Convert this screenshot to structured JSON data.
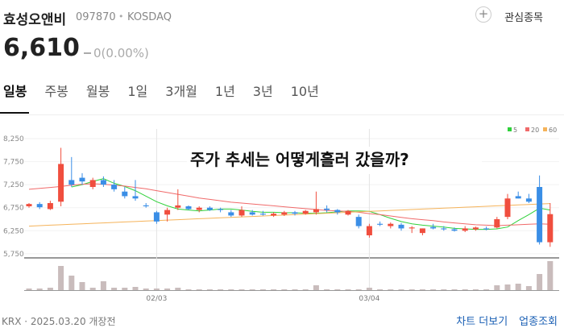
{
  "header": {
    "name": "효성오앤비",
    "code": "097870",
    "market": "KOSDAQ",
    "watch_button": "관심종목"
  },
  "price": {
    "current": "6,610",
    "change": "0(0.00%)"
  },
  "tabs": [
    "일봉",
    "주봉",
    "월봉",
    "1일",
    "3개월",
    "1년",
    "3년",
    "10년"
  ],
  "annotation": "주가 추세는 어떻게흘러 갔을까?",
  "footer": {
    "info": "KRX · 2025.03.20 개장전",
    "links": [
      "차트 더보기",
      "업종조회"
    ]
  },
  "chart_data": {
    "type": "candlestick",
    "categories": [
      null,
      null,
      null,
      null,
      null,
      null,
      null,
      null,
      null,
      null,
      null,
      null,
      "02/03",
      null,
      null,
      null,
      null,
      null,
      null,
      null,
      null,
      null,
      null,
      null,
      null,
      null,
      null,
      null,
      null,
      null,
      null,
      null,
      "03/04",
      null,
      null,
      null,
      null,
      null,
      null,
      null,
      null,
      null,
      null,
      null,
      null,
      null,
      null,
      null,
      null,
      null
    ],
    "open": [
      6780,
      6830,
      6720,
      6880,
      7350,
      7400,
      7200,
      7350,
      7250,
      7100,
      7000,
      6800,
      6650,
      6600,
      6750,
      6780,
      6700,
      6750,
      6720,
      6650,
      6580,
      6650,
      6620,
      6580,
      6600,
      6650,
      6620,
      6650,
      6730,
      6700,
      6600,
      6550,
      6150,
      6400,
      6350,
      6380,
      6300,
      6200,
      6330,
      6300,
      6280,
      6250,
      6280,
      6300,
      6320,
      6550,
      7000,
      6950,
      7200,
      6000
    ],
    "high": [
      6850,
      6870,
      6900,
      8050,
      7850,
      7500,
      7400,
      7430,
      7350,
      7200,
      7350,
      6850,
      6680,
      6750,
      7150,
      6800,
      6780,
      6780,
      6750,
      6700,
      6780,
      6700,
      6680,
      6650,
      6680,
      6680,
      6700,
      7100,
      6800,
      6720,
      6700,
      6600,
      6400,
      6450,
      6430,
      6420,
      6350,
      6300,
      6400,
      6350,
      6320,
      6350,
      6340,
      6340,
      6550,
      7050,
      7100,
      7050,
      7450,
      6850
    ],
    "low": [
      6750,
      6720,
      6700,
      6780,
      7200,
      7250,
      7150,
      7200,
      7100,
      6950,
      6900,
      6750,
      6400,
      6450,
      6700,
      6700,
      6650,
      6680,
      6650,
      6550,
      6550,
      6580,
      6580,
      6550,
      6570,
      6580,
      6600,
      6600,
      6650,
      6600,
      6580,
      6300,
      6100,
      6350,
      6300,
      6250,
      6200,
      6150,
      6280,
      6250,
      6230,
      6220,
      6250,
      6260,
      6300,
      6500,
      6950,
      6850,
      5950,
      5900
    ],
    "close": [
      6830,
      6760,
      6850,
      7700,
      7250,
      7320,
      7350,
      7250,
      7150,
      7000,
      6950,
      6780,
      6450,
      6700,
      6800,
      6720,
      6750,
      6700,
      6700,
      6580,
      6700,
      6600,
      6600,
      6620,
      6650,
      6620,
      6680,
      6720,
      6700,
      6650,
      6680,
      6350,
      6350,
      6380,
      6400,
      6300,
      6320,
      6300,
      6300,
      6280,
      6250,
      6300,
      6320,
      6280,
      6500,
      6950,
      6950,
      6880,
      6000,
      6610
    ],
    "volume": [
      40000,
      40000,
      60000,
      600000,
      360000,
      200000,
      60000,
      220000,
      60000,
      60000,
      80000,
      40000,
      40000,
      40000,
      60000,
      20000,
      20000,
      20000,
      20000,
      20000,
      20000,
      20000,
      20000,
      20000,
      20000,
      20000,
      20000,
      120000,
      20000,
      20000,
      20000,
      20000,
      60000,
      20000,
      20000,
      20000,
      20000,
      20000,
      20000,
      20000,
      20000,
      20000,
      20000,
      20000,
      120000,
      140000,
      160000,
      100000,
      400000,
      720000
    ],
    "up_color": "#f04e3e",
    "down_color": "#3a8ee6",
    "volume_color": "#c9bcbc",
    "ma": [
      {
        "name": "5",
        "color": "#2fd13a",
        "values": [
          null,
          null,
          null,
          null,
          7200,
          7250,
          7320,
          7380,
          7280,
          7210,
          7120,
          7000,
          6880,
          6790,
          6720,
          6700,
          6680,
          6700,
          6720,
          6720,
          6700,
          6670,
          6650,
          6650,
          6640,
          6640,
          6630,
          6630,
          6640,
          6660,
          6680,
          6680,
          6670,
          6600,
          6520,
          6450,
          6400,
          6370,
          6350,
          6330,
          6300,
          6290,
          6280,
          6280,
          6290,
          6330,
          6470,
          6600,
          6740,
          6700
        ]
      },
      {
        "name": "20",
        "color": "#f06a6a",
        "values": [
          7150,
          7170,
          7190,
          7210,
          7240,
          7260,
          7270,
          7260,
          7240,
          7220,
          7190,
          7160,
          7120,
          7080,
          7040,
          7000,
          6960,
          6930,
          6900,
          6870,
          6850,
          6830,
          6810,
          6790,
          6770,
          6750,
          6730,
          6710,
          6690,
          6680,
          6670,
          6650,
          6620,
          6600,
          6570,
          6540,
          6510,
          6490,
          6470,
          6440,
          6420,
          6400,
          6380,
          6370,
          6360,
          6370,
          6380,
          6390,
          6400,
          6390
        ]
      },
      {
        "name": "60",
        "color": "#f5b35a",
        "values": [
          6350,
          6360,
          6370,
          6380,
          6390,
          6400,
          6410,
          6420,
          6430,
          6440,
          6450,
          6460,
          6470,
          6480,
          6490,
          6500,
          6510,
          6520,
          6530,
          6540,
          6550,
          6560,
          6570,
          6580,
          6590,
          6600,
          6610,
          6620,
          6630,
          6640,
          6650,
          6660,
          6670,
          6680,
          6690,
          6700,
          6710,
          6720,
          6730,
          6740,
          6750,
          6760,
          6770,
          6780,
          6790,
          6800,
          6810,
          6820,
          6830,
          6840
        ]
      }
    ],
    "ylim": [
      5660,
      8460
    ],
    "yticks": [
      {
        "value": 5750,
        "label": "5,750"
      },
      {
        "value": 6250,
        "label": "6,250"
      },
      {
        "value": 6750,
        "label": "6,750"
      },
      {
        "value": 7250,
        "label": "7,250"
      },
      {
        "value": 7750,
        "label": "7,750"
      },
      {
        "value": 8250,
        "label": "8,250"
      }
    ],
    "grid": true
  }
}
